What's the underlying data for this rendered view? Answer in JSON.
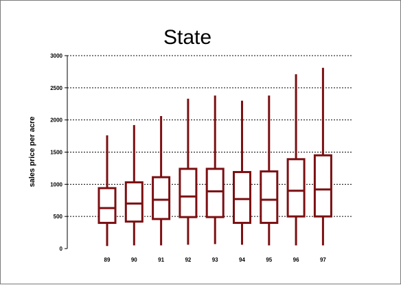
{
  "chart_data": {
    "type": "boxplot",
    "title": "State",
    "xlabel": "",
    "ylabel": "sales price per acre",
    "ylim": [
      0,
      3000
    ],
    "yticks": [
      0,
      500,
      1000,
      1500,
      2000,
      2500,
      3000
    ],
    "grid": true,
    "series_color": "#7b0f12",
    "categories": [
      "89",
      "90",
      "91",
      "92",
      "93",
      "94",
      "95",
      "96",
      "97"
    ],
    "boxes": [
      {
        "category": "89",
        "min": 40,
        "q1": 400,
        "median": 630,
        "q3": 940,
        "max": 1760
      },
      {
        "category": "90",
        "min": 50,
        "q1": 420,
        "median": 700,
        "q3": 1030,
        "max": 1920
      },
      {
        "category": "91",
        "min": 50,
        "q1": 460,
        "median": 760,
        "q3": 1110,
        "max": 2060
      },
      {
        "category": "92",
        "min": 60,
        "q1": 490,
        "median": 810,
        "q3": 1240,
        "max": 2330
      },
      {
        "category": "93",
        "min": 70,
        "q1": 490,
        "median": 890,
        "q3": 1240,
        "max": 2380
      },
      {
        "category": "94",
        "min": 60,
        "q1": 400,
        "median": 770,
        "q3": 1190,
        "max": 2300
      },
      {
        "category": "95",
        "min": 50,
        "q1": 400,
        "median": 760,
        "q3": 1200,
        "max": 2380
      },
      {
        "category": "96",
        "min": 50,
        "q1": 500,
        "median": 900,
        "q3": 1390,
        "max": 2710
      },
      {
        "category": "97",
        "min": 50,
        "q1": 500,
        "median": 920,
        "q3": 1450,
        "max": 2810
      }
    ]
  }
}
